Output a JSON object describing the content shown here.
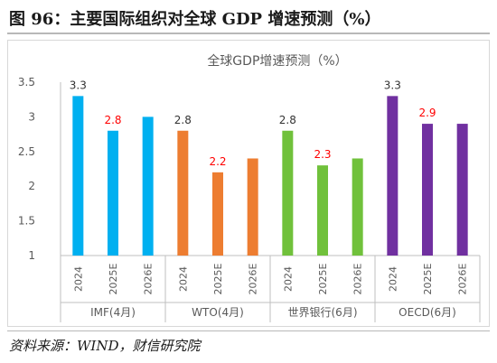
{
  "figure": {
    "title": "图 96：主要国际组织对全球 GDP 增速预测（%）",
    "source": "资料来源：WIND，财信研究院"
  },
  "chart_data": {
    "type": "bar",
    "title": "全球GDP增速预测（%）",
    "xlabel": "",
    "ylabel": "",
    "ylim": [
      1,
      3.5
    ],
    "yticks": [
      "1",
      "1.5",
      "2",
      "2.5",
      "3",
      "3.5"
    ],
    "grid": false,
    "legend": "none",
    "groups": [
      {
        "name": "IMF(4月)",
        "color": "#00b0f0",
        "categories": [
          "2024",
          "2025E",
          "2026E"
        ],
        "values": [
          3.3,
          2.8,
          3.0
        ],
        "labels": [
          "3.3",
          "2.8",
          ""
        ],
        "label_colors": [
          "#333333",
          "#ff0000",
          "#333333"
        ]
      },
      {
        "name": "WTO(4月)",
        "color": "#ed7d31",
        "categories": [
          "2024",
          "2025E",
          "2026E"
        ],
        "values": [
          2.8,
          2.2,
          2.4
        ],
        "labels": [
          "2.8",
          "2.2",
          ""
        ],
        "label_colors": [
          "#333333",
          "#ff0000",
          "#333333"
        ]
      },
      {
        "name": "世界银行(6月)",
        "color": "#70c13b",
        "categories": [
          "2024",
          "2025E",
          "2026E"
        ],
        "values": [
          2.8,
          2.3,
          2.4
        ],
        "labels": [
          "2.8",
          "2.3",
          ""
        ],
        "label_colors": [
          "#333333",
          "#ff0000",
          "#333333"
        ]
      },
      {
        "name": "OECD(6月)",
        "color": "#7030a0",
        "categories": [
          "2024",
          "2025E",
          "2026E"
        ],
        "values": [
          3.3,
          2.9,
          2.9
        ],
        "labels": [
          "3.3",
          "2.9",
          ""
        ],
        "label_colors": [
          "#333333",
          "#ff0000",
          "#333333"
        ]
      }
    ]
  }
}
